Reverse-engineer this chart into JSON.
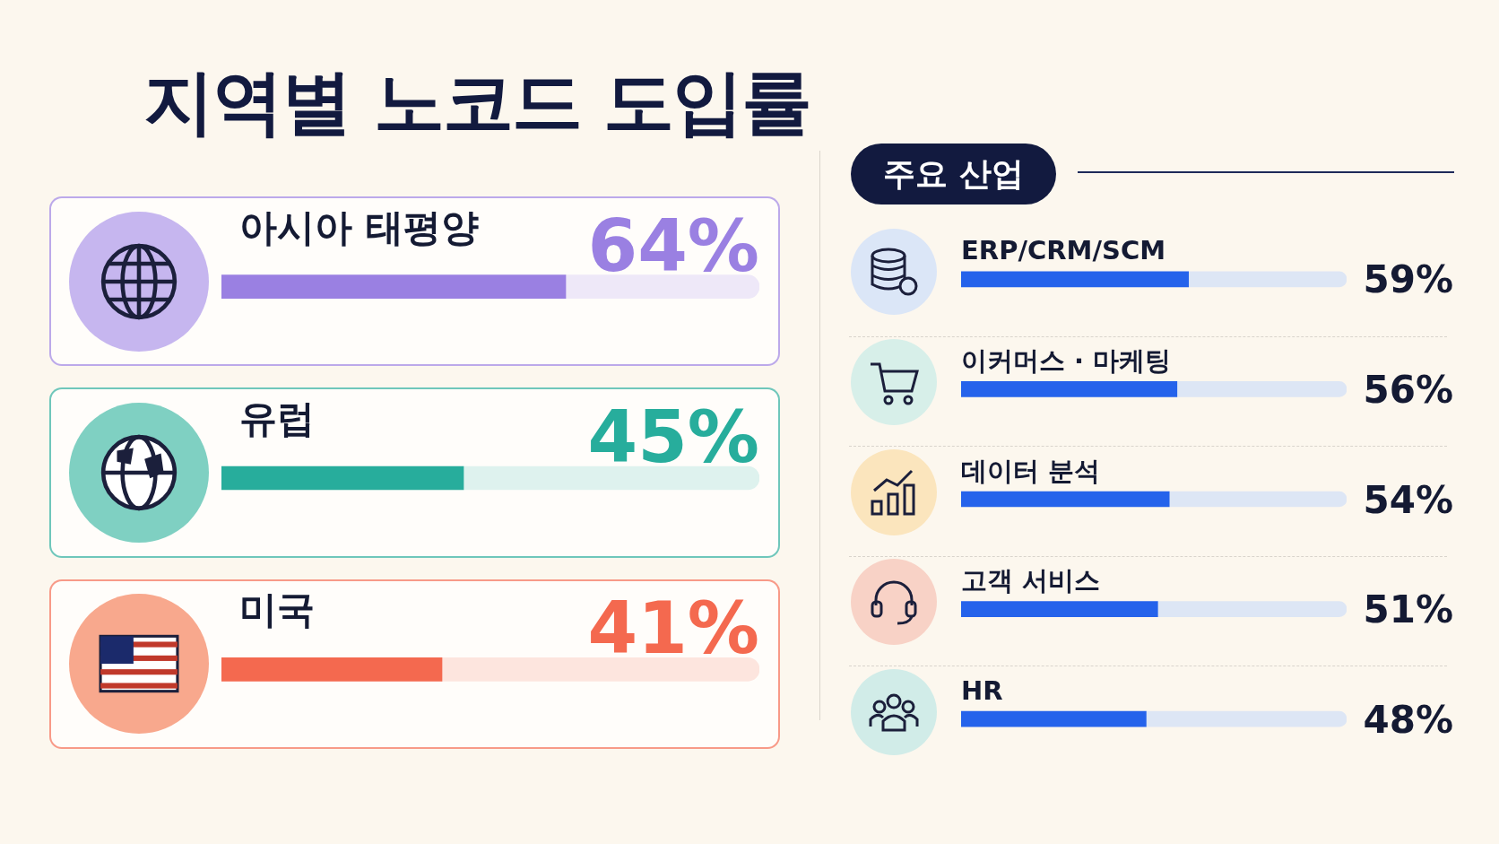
{
  "chart_data": [
    {
      "type": "bar",
      "orientation": "horizontal",
      "stacked": true,
      "title": "지역별 노코드 도입률",
      "categories": [
        "아시아 태평양",
        "유럽",
        "미국"
      ],
      "series": [
        {
          "colors": [
            "#9a80e2",
            "#27ad9c",
            "#f4694f"
          ],
          "values": [
            64,
            45,
            41
          ],
          "value_labels": [
            "64%",
            "45%",
            "41%"
          ]
        },
        {
          "colors": [
            "#eee8f8",
            "#def2ee",
            "#fde5de"
          ],
          "values": [
            36,
            55,
            59
          ]
        }
      ],
      "xlim": [
        0,
        100
      ],
      "tick_labels": false
    },
    {
      "type": "bar",
      "orientation": "horizontal",
      "stacked": true,
      "title": "주요 산업",
      "categories": [
        "ERP/CRM/SCM",
        "이커머스 · 마케팅",
        "데이터 분석",
        "고객 서비스",
        "HR"
      ],
      "series": [
        {
          "color": "#2563eb",
          "values": [
            59,
            56,
            54,
            51,
            48
          ],
          "value_labels": [
            "59%",
            "56%",
            "54%",
            "51%",
            "48%"
          ]
        },
        {
          "color": "#dde6f5",
          "values": [
            41,
            44,
            46,
            49,
            52
          ]
        }
      ],
      "xlim": [
        0,
        100
      ],
      "tick_labels": false
    }
  ]
}
